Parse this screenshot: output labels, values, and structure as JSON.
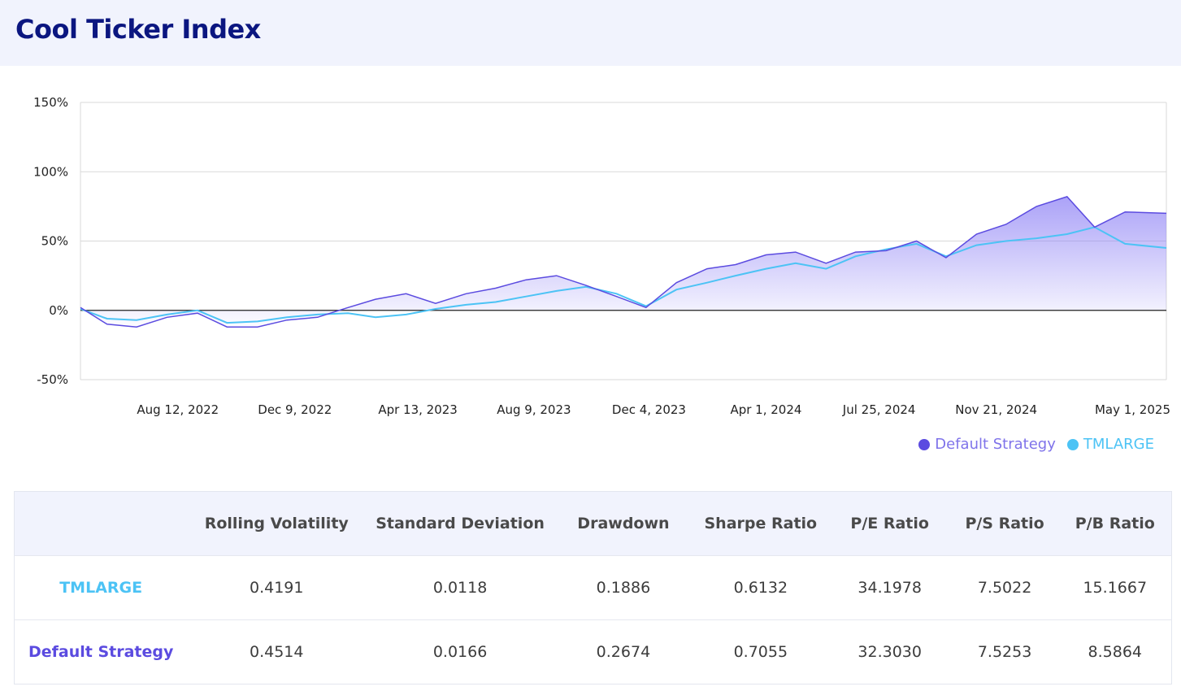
{
  "header": {
    "title": "Cool Ticker Index"
  },
  "colors": {
    "default_strategy": "#5b4be0",
    "tmlarge": "#4cc3f5",
    "area_fill": "#8f83f5",
    "header_bg": "#f1f3fd",
    "title": "#0b1680"
  },
  "chart_data": {
    "type": "line",
    "title": "",
    "xlabel": "",
    "ylabel": "",
    "ylim": [
      -50,
      150
    ],
    "y_ticks": [
      "150%",
      "100%",
      "50%",
      "0%",
      "-50%"
    ],
    "y_tick_values": [
      150,
      100,
      50,
      0,
      -50
    ],
    "x_ticks": [
      "Aug 12, 2022",
      "Dec 9, 2022",
      "Apr 13, 2023",
      "Aug 9, 2023",
      "Dec 4, 2023",
      "Apr 1, 2024",
      "Jul 25, 2024",
      "Nov 21, 2024",
      "May 1, 2025"
    ],
    "x_tick_dates": [
      "2022-08-12",
      "2022-12-09",
      "2023-04-13",
      "2023-08-09",
      "2023-12-04",
      "2024-04-01",
      "2024-07-25",
      "2024-11-21",
      "2025-05-01"
    ],
    "xlim": [
      "2022-05-05",
      "2025-05-13"
    ],
    "grid": true,
    "legend_position": "bottom-right",
    "series": [
      {
        "name": "Default Strategy",
        "x": [
          "2022-05-05",
          "2022-06-01",
          "2022-07-01",
          "2022-08-01",
          "2022-09-01",
          "2022-10-01",
          "2022-11-01",
          "2022-12-01",
          "2023-01-01",
          "2023-02-01",
          "2023-03-01",
          "2023-04-01",
          "2023-05-01",
          "2023-06-01",
          "2023-07-01",
          "2023-08-01",
          "2023-09-01",
          "2023-10-01",
          "2023-11-01",
          "2023-12-01",
          "2024-01-01",
          "2024-02-01",
          "2024-03-01",
          "2024-04-01",
          "2024-05-01",
          "2024-06-01",
          "2024-07-01",
          "2024-08-01",
          "2024-09-01",
          "2024-10-01",
          "2024-11-01",
          "2024-12-01",
          "2025-01-01",
          "2025-02-01",
          "2025-03-01",
          "2025-04-01",
          "2025-05-13"
        ],
        "values": [
          2,
          -10,
          -12,
          -5,
          -2,
          -12,
          -12,
          -7,
          -5,
          2,
          8,
          12,
          5,
          12,
          16,
          22,
          25,
          18,
          10,
          2,
          20,
          30,
          33,
          40,
          42,
          34,
          42,
          43,
          50,
          38,
          55,
          62,
          75,
          82,
          60,
          71,
          70
        ]
      },
      {
        "name": "TMLARGE",
        "x": [
          "2022-05-05",
          "2022-06-01",
          "2022-07-01",
          "2022-08-01",
          "2022-09-01",
          "2022-10-01",
          "2022-11-01",
          "2022-12-01",
          "2023-01-01",
          "2023-02-01",
          "2023-03-01",
          "2023-04-01",
          "2023-05-01",
          "2023-06-01",
          "2023-07-01",
          "2023-08-01",
          "2023-09-01",
          "2023-10-01",
          "2023-11-01",
          "2023-12-01",
          "2024-01-01",
          "2024-02-01",
          "2024-03-01",
          "2024-04-01",
          "2024-05-01",
          "2024-06-01",
          "2024-07-01",
          "2024-08-01",
          "2024-09-01",
          "2024-10-01",
          "2024-11-01",
          "2024-12-01",
          "2025-01-01",
          "2025-02-01",
          "2025-03-01",
          "2025-04-01",
          "2025-05-13"
        ],
        "values": [
          1,
          -6,
          -7,
          -3,
          0,
          -9,
          -8,
          -5,
          -3,
          -2,
          -5,
          -3,
          1,
          4,
          6,
          10,
          14,
          17,
          12,
          3,
          15,
          20,
          25,
          30,
          34,
          30,
          39,
          44,
          48,
          39,
          47,
          50,
          52,
          55,
          60,
          48,
          45
        ]
      }
    ]
  },
  "legend": [
    {
      "label": "Default Strategy"
    },
    {
      "label": "TMLARGE"
    }
  ],
  "table": {
    "columns": [
      "",
      "Rolling Volatility",
      "Standard Deviation",
      "Drawdown",
      "Sharpe Ratio",
      "P/E Ratio",
      "P/S Ratio",
      "P/B Ratio"
    ],
    "rows": [
      {
        "name": "TMLARGE",
        "values": [
          "0.4191",
          "0.0118",
          "0.1886",
          "0.6132",
          "34.1978",
          "7.5022",
          "15.1667"
        ]
      },
      {
        "name": "Default Strategy",
        "values": [
          "0.4514",
          "0.0166",
          "0.2674",
          "0.7055",
          "32.3030",
          "7.5253",
          "8.5864"
        ]
      }
    ]
  }
}
